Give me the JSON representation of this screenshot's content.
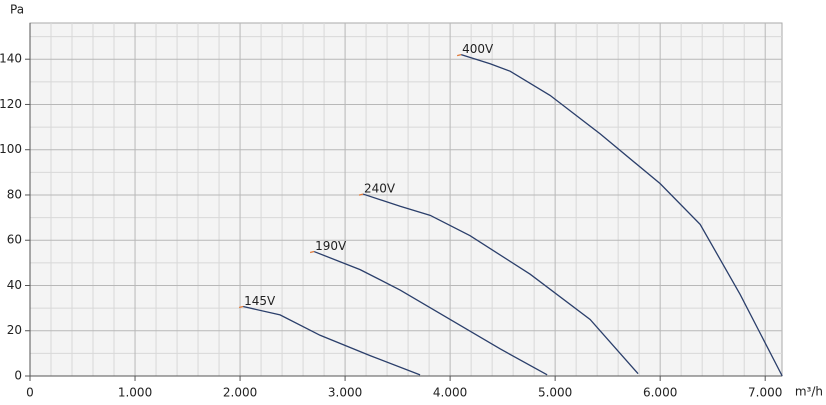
{
  "chart_data": {
    "type": "line",
    "y_label": "Pa",
    "x_label": "m³/h",
    "xlim": [
      0,
      7160
    ],
    "ylim": [
      0,
      156
    ],
    "xticks": [
      0,
      {
        "value": 1000,
        "label": "1.000"
      },
      {
        "value": 2000,
        "label": "2.000"
      },
      {
        "value": 3000,
        "label": "3.000"
      },
      {
        "value": 4000,
        "label": "4.000"
      },
      {
        "value": 5000,
        "label": "5.000"
      },
      {
        "value": 6000,
        "label": "6.000"
      },
      {
        "value": 7000,
        "label": "7.000"
      }
    ],
    "yticks": [
      0,
      20,
      40,
      60,
      80,
      100,
      120,
      140
    ],
    "grid": true,
    "series": [
      {
        "name": "400V",
        "color": "#2b3f6b",
        "x": [
          4105,
          4381,
          4571,
          4952,
          5429,
          6000,
          6381,
          6762,
          7162
        ],
        "values": [
          142,
          138,
          134.7,
          124,
          107,
          85,
          67,
          36,
          0
        ]
      },
      {
        "name": "240V",
        "color": "#2b3f6b",
        "x": [
          3171,
          3524,
          3810,
          4190,
          4762,
          5333,
          5790
        ],
        "values": [
          80.4,
          75,
          71,
          62,
          45,
          25,
          1
        ]
      },
      {
        "name": "190V",
        "color": "#2b3f6b",
        "x": [
          2705,
          3143,
          3524,
          4000,
          4476,
          4924
        ],
        "values": [
          55,
          47,
          38,
          25,
          12,
          0.5
        ]
      },
      {
        "name": "145V",
        "color": "#2b3f6b",
        "x": [
          2029,
          2381,
          2762,
          3238,
          3714
        ],
        "values": [
          30.7,
          27,
          18,
          9,
          0.5
        ]
      }
    ]
  }
}
